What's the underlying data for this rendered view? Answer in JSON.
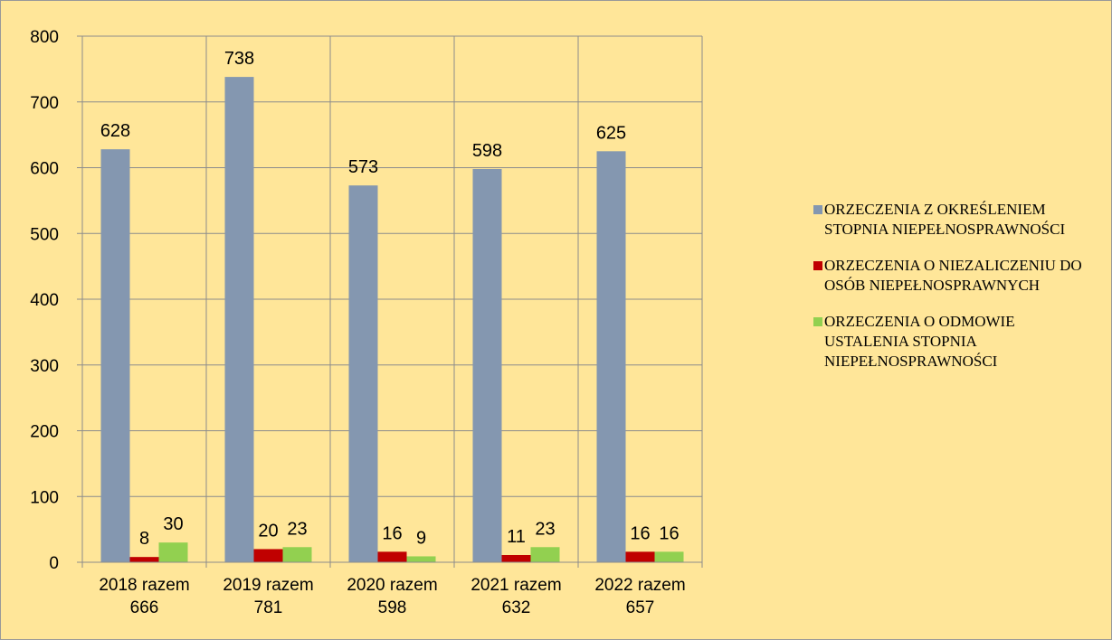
{
  "chart_data": {
    "type": "bar",
    "categories": [
      "2018 razem\n666",
      "2019 razem\n781",
      "2020 razem\n598",
      "2021 razem\n632",
      "2022 razem\n657"
    ],
    "series": [
      {
        "name": "ORZECZENIA Z OKREŚLENIEM STOPNIA NIEPEŁNOSPRAWNOŚCI",
        "color": "#8497B0",
        "values": [
          628,
          738,
          573,
          598,
          625
        ]
      },
      {
        "name": "ORZECZENIA O NIEZALICZENIU DO OSÓB NIEPEŁNOSPRAWNYCH",
        "color": "#C00000",
        "values": [
          8,
          20,
          16,
          11,
          16
        ]
      },
      {
        "name": "ORZECZENIA O ODMOWIE USTALENIA STOPNIA NIEPEŁNOSPRAWNOŚCI",
        "color": "#92D050",
        "values": [
          30,
          23,
          9,
          23,
          16
        ]
      }
    ],
    "ylim": [
      0,
      800
    ],
    "yticks": [
      0,
      100,
      200,
      300,
      400,
      500,
      600,
      700,
      800
    ],
    "grid": true,
    "legend": "right"
  }
}
